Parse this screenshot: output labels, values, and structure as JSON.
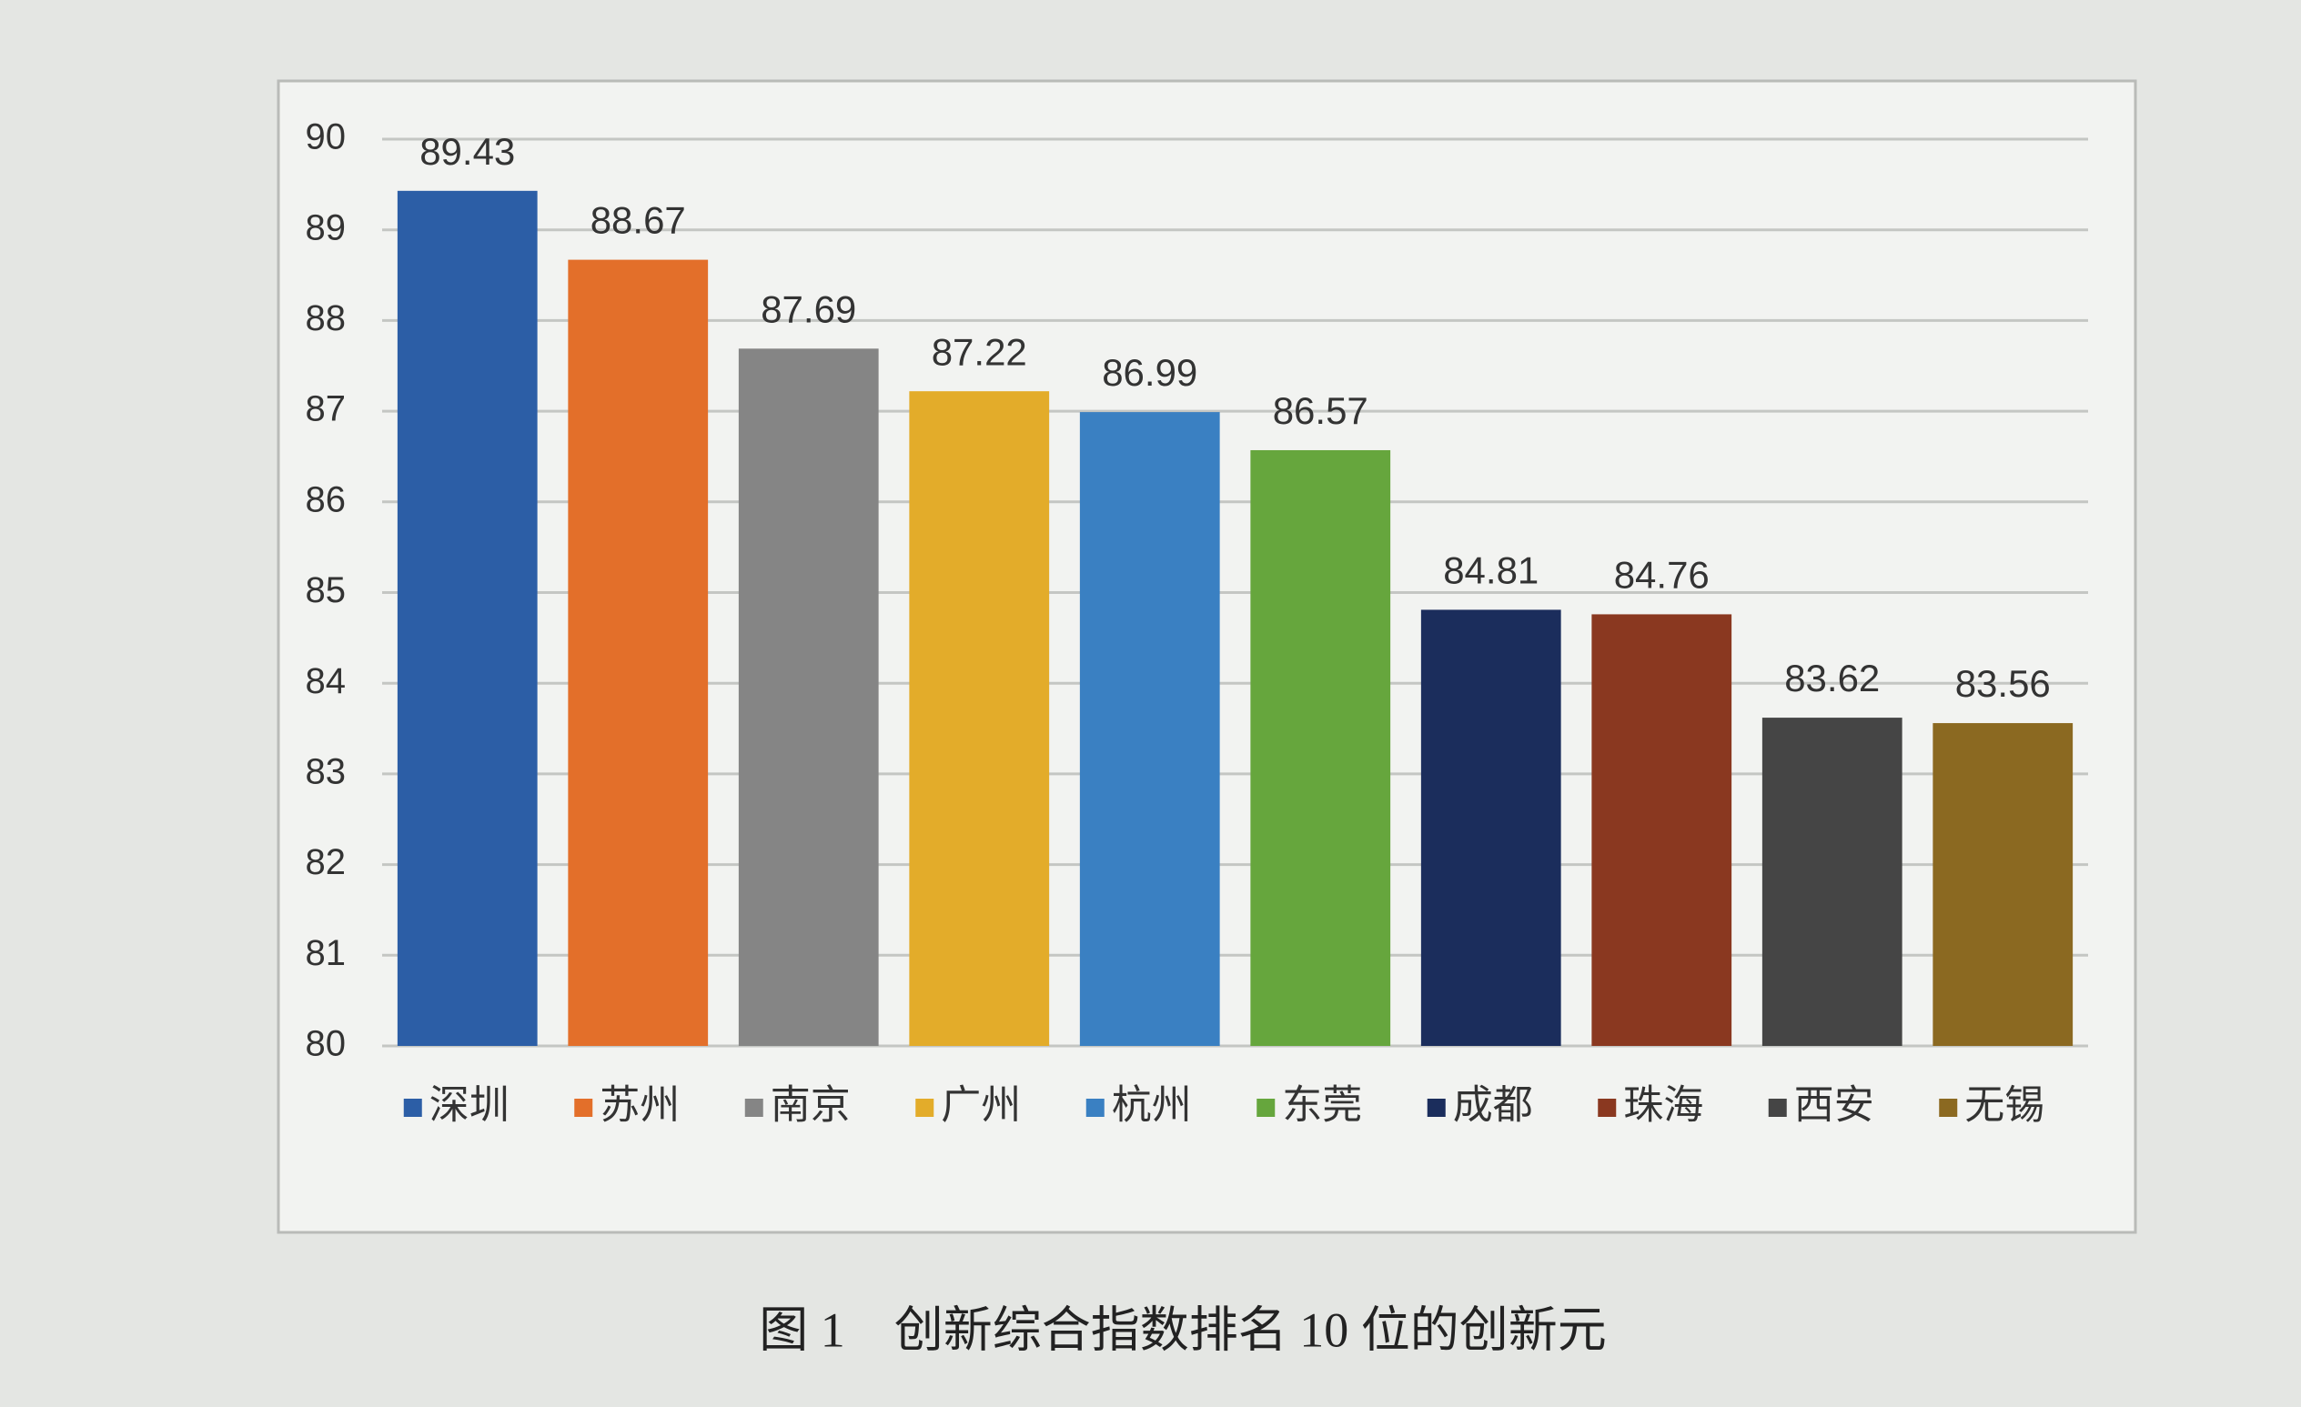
{
  "chart_data": {
    "type": "bar",
    "title": "图 1　创新综合指数排名 10 位的创新元",
    "categories": [
      "深圳",
      "苏州",
      "南京",
      "广州",
      "杭州",
      "东莞",
      "成都",
      "珠海",
      "西安",
      "无锡"
    ],
    "values": [
      89.43,
      88.67,
      87.69,
      87.22,
      86.99,
      86.57,
      84.81,
      84.76,
      83.62,
      83.56
    ],
    "colors": [
      "#2c5ea6",
      "#e36f2a",
      "#858585",
      "#e3ac2a",
      "#3a80c2",
      "#66a63d",
      "#1b2d5c",
      "#8a3820",
      "#454545",
      "#8b6921"
    ],
    "ylim": [
      80,
      90
    ],
    "yticks": [
      80,
      81,
      82,
      83,
      84,
      85,
      86,
      87,
      88,
      89,
      90
    ],
    "grid": true,
    "legend": "bottom"
  }
}
